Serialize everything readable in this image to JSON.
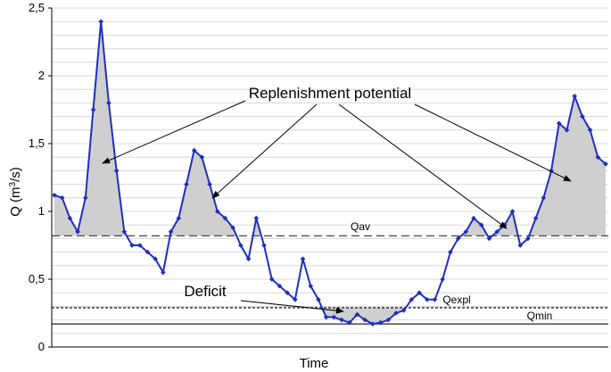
{
  "chart_data": {
    "type": "line",
    "title": "",
    "xlabel": "Time",
    "ylabel": "Q (m³/s)",
    "ylabel_parts": [
      "Q (m",
      "3",
      "/s)"
    ],
    "ylim": [
      0,
      2.5
    ],
    "yticks": [
      {
        "value": 0,
        "label": "0"
      },
      {
        "value": 0.5,
        "label": "0,5"
      },
      {
        "value": 1,
        "label": "1"
      },
      {
        "value": 1.5,
        "label": "1,5"
      },
      {
        "value": 2,
        "label": "2"
      },
      {
        "value": 2.5,
        "label": "2,5"
      }
    ],
    "minor_grid_step": 0.1,
    "grid": true,
    "series": [
      {
        "color": "#1f2fbf",
        "values": [
          1.12,
          1.1,
          0.95,
          0.85,
          1.1,
          1.75,
          2.4,
          1.8,
          1.3,
          0.85,
          0.75,
          0.75,
          0.7,
          0.65,
          0.55,
          0.85,
          0.95,
          1.2,
          1.45,
          1.4,
          1.2,
          1.0,
          0.95,
          0.88,
          0.75,
          0.65,
          0.95,
          0.75,
          0.5,
          0.45,
          0.4,
          0.35,
          0.65,
          0.45,
          0.35,
          0.22,
          0.22,
          0.2,
          0.18,
          0.24,
          0.2,
          0.17,
          0.18,
          0.2,
          0.25,
          0.27,
          0.35,
          0.4,
          0.35,
          0.35,
          0.5,
          0.7,
          0.8,
          0.85,
          0.95,
          0.9,
          0.8,
          0.85,
          0.9,
          1.0,
          0.75,
          0.8,
          0.95,
          1.1,
          1.3,
          1.65,
          1.6,
          1.85,
          1.7,
          1.6,
          1.4,
          1.35
        ]
      }
    ],
    "reference_lines": [
      {
        "name": "Qav",
        "value": 0.82,
        "style": "long-dash",
        "color": "#444444"
      },
      {
        "name": "Qexpl",
        "value": 0.29,
        "style": "short-dash",
        "color": "#222222"
      },
      {
        "name": "Qmin",
        "value": 0.17,
        "style": "solid",
        "color": "#222222"
      }
    ],
    "shaded": {
      "replenishment_above": "Qav",
      "deficit_below": "Qexpl",
      "fill": "#cfcfcf"
    },
    "annotations": [
      {
        "text": "Replenishment potential",
        "style": "big"
      },
      {
        "text": "Deficit",
        "style": "big"
      }
    ]
  }
}
